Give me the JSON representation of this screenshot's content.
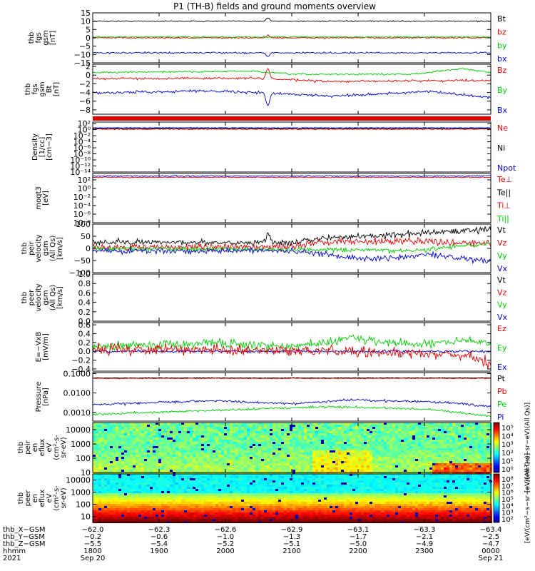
{
  "title": "P1 (TH-B) fields and ground moments overview",
  "colors": {
    "black": "#000000",
    "red": "#e00000",
    "green": "#00cc00",
    "blue": "#0000cc"
  },
  "chart_data": [
    {
      "id": "fgs",
      "type": "line",
      "ylabel": [
        "thb",
        "fgs",
        "gsm",
        "[nT]"
      ],
      "ylim": [
        -15,
        15
      ],
      "ticks": [
        15,
        10,
        5,
        0,
        -5,
        -10,
        -15
      ],
      "tick_labels": [
        "15",
        "10",
        "5",
        "0",
        "−5",
        "−10",
        "−15"
      ],
      "legend": [
        {
          "label": "Bt",
          "color": "black"
        },
        {
          "label": "bz",
          "color": "red"
        },
        {
          "label": "by",
          "color": "green"
        },
        {
          "label": "bx",
          "color": "blue"
        }
      ],
      "series": [
        {
          "name": "Bt",
          "color": "black",
          "base": 10,
          "noise": 0.35,
          "events": [
            [
              0.44,
              2
            ]
          ]
        },
        {
          "name": "bz",
          "color": "red",
          "base": 0,
          "noise": 0.45,
          "events": [
            [
              0.44,
              1.5
            ]
          ]
        },
        {
          "name": "by",
          "color": "green",
          "base": 0.5,
          "noise": 0.35
        },
        {
          "name": "bx",
          "color": "blue",
          "base": -9,
          "noise": 0.5,
          "events": [
            [
              0.44,
              -2
            ]
          ]
        }
      ]
    },
    {
      "id": "fgs_zoom",
      "type": "line",
      "ylabel": [
        "thb",
        "fgs",
        "gsm",
        "Bt",
        "[nT]"
      ],
      "ylim": [
        -9,
        2.5
      ],
      "ticks": [
        2,
        0,
        -2,
        -4,
        -6,
        -8
      ],
      "tick_labels": [
        "2",
        "0",
        "−2",
        "−4",
        "−6",
        "−8"
      ],
      "legend": [
        {
          "label": "Bz",
          "color": "red"
        },
        {
          "label": "By",
          "color": "green"
        },
        {
          "label": "Bx",
          "color": "blue"
        }
      ],
      "series": [
        {
          "name": "Bz",
          "color": "red",
          "trend": [
            [
              0,
              -0.8
            ],
            [
              0.4,
              -0.7
            ],
            [
              0.6,
              -1.5
            ],
            [
              0.8,
              -1.3
            ],
            [
              1,
              -1.2
            ]
          ],
          "noise": 0.25,
          "events": [
            [
              0.44,
              2.5
            ]
          ]
        },
        {
          "name": "By",
          "color": "green",
          "trend": [
            [
              0,
              0.6
            ],
            [
              0.4,
              0.9
            ],
            [
              0.5,
              0.2
            ],
            [
              0.8,
              0.2
            ],
            [
              0.93,
              1.5
            ],
            [
              1,
              0.6
            ]
          ],
          "noise": 0.2
        },
        {
          "name": "Bx",
          "color": "blue",
          "trend": [
            [
              0,
              -4.1
            ],
            [
              0.3,
              -3.6
            ],
            [
              0.6,
              -4.8
            ],
            [
              0.85,
              -3.8
            ],
            [
              1,
              -5.2
            ]
          ],
          "noise": 0.3,
          "events": [
            [
              0.44,
              -3
            ]
          ]
        }
      ]
    },
    {
      "id": "density",
      "type": "line",
      "log": true,
      "ylabel": [
        "Density",
        "[1/cc]",
        "[cm−3]"
      ],
      "ylim": [
        -14,
        2.5
      ],
      "ticks": [
        2,
        0,
        -2,
        -4,
        -6,
        -8,
        -10,
        -12,
        -14
      ],
      "tick_labels": [
        "10²",
        "10⁰",
        "10⁻²",
        "10⁻⁴",
        "10⁻⁶",
        "10⁻⁸",
        "10⁻¹⁰",
        "10⁻¹²",
        "10⁻¹⁴"
      ],
      "legend": [
        {
          "label": "Ne",
          "color": "red"
        },
        {
          "label": "Ni",
          "color": "black"
        },
        {
          "label": "Npot",
          "color": "blue"
        }
      ],
      "series": [
        {
          "name": "Ne",
          "color": "red",
          "base": 0.15,
          "noise": 0.15
        },
        {
          "name": "Ni",
          "color": "black",
          "base": 0.4,
          "noise": 0.12
        },
        {
          "name": "Npot",
          "color": "blue",
          "base": 0.6,
          "noise": 0.1
        }
      ]
    },
    {
      "id": "temperature",
      "type": "line",
      "log": true,
      "ylabel": [
        "moqt3",
        "[eV]"
      ],
      "ylim": [
        -8,
        3.5
      ],
      "ticks": [
        2,
        0,
        -2,
        -4,
        -6,
        -8
      ],
      "tick_labels": [
        "10²",
        "10⁰",
        "10⁻²",
        "10⁻⁴",
        "10⁻⁶",
        "10⁻⁸"
      ],
      "legend": [
        {
          "label": "Te⊥",
          "color": "red"
        },
        {
          "label": "Te||",
          "color": "black"
        },
        {
          "label": "Ti⊥",
          "color": "red"
        },
        {
          "label": "Ti||",
          "color": "green"
        }
      ],
      "series": [
        {
          "name": "Te",
          "color": "red",
          "base": 2.6,
          "noise": 0.12
        },
        {
          "name": "Ti",
          "color": "blue",
          "base": 2.9,
          "noise": 0.15
        }
      ]
    },
    {
      "id": "peir_velocity",
      "type": "line",
      "ylabel": [
        "thb",
        "peir",
        "velocity",
        "gsm",
        "(All Qs)",
        "[km/s]"
      ],
      "ylim": [
        -100,
        100
      ],
      "ticks": [
        100,
        50,
        0,
        -50,
        -100
      ],
      "tick_labels": [
        "100",
        "50",
        "0",
        "−50",
        "−100"
      ],
      "legend": [
        {
          "label": "Vt",
          "color": "black"
        },
        {
          "label": "Vz",
          "color": "red"
        },
        {
          "label": "Vy",
          "color": "green"
        },
        {
          "label": "Vx",
          "color": "blue"
        }
      ],
      "series": [
        {
          "name": "Vt",
          "color": "black",
          "trend": [
            [
              0,
              25
            ],
            [
              0.5,
              25
            ],
            [
              0.6,
              45
            ],
            [
              0.8,
              60
            ],
            [
              1,
              80
            ]
          ],
          "noise": 12,
          "events": [
            [
              0.44,
              40
            ]
          ]
        },
        {
          "name": "Vz",
          "color": "red",
          "trend": [
            [
              0,
              5
            ],
            [
              0.5,
              5
            ],
            [
              0.6,
              30
            ],
            [
              0.8,
              30
            ],
            [
              1,
              20
            ]
          ],
          "noise": 15
        },
        {
          "name": "Vy",
          "color": "green",
          "trend": [
            [
              0,
              0
            ],
            [
              0.5,
              -5
            ],
            [
              0.8,
              -10
            ],
            [
              1,
              20
            ]
          ],
          "noise": 10
        },
        {
          "name": "Vx",
          "color": "blue",
          "trend": [
            [
              0,
              -10
            ],
            [
              0.5,
              -10
            ],
            [
              0.7,
              -45
            ],
            [
              0.85,
              -25
            ],
            [
              1,
              -55
            ]
          ],
          "noise": 12
        }
      ]
    },
    {
      "id": "peer_velocity",
      "type": "line",
      "ylabel": [
        "thb",
        "peer",
        "velocity",
        "gsm",
        "(All Qs)",
        "[km/s]"
      ],
      "ylim": [
        0,
        1
      ],
      "ticks": [
        1.0,
        0.8,
        0.6,
        0.4,
        0.2,
        0.0
      ],
      "tick_labels": [
        "1.0",
        "0.8",
        "0.6",
        "0.4",
        "0.2",
        "0.0"
      ],
      "legend": [
        {
          "label": "Vt",
          "color": "black"
        },
        {
          "label": "Vz",
          "color": "red"
        },
        {
          "label": "Vy",
          "color": "green"
        },
        {
          "label": "Vx",
          "color": "blue"
        }
      ],
      "series": []
    },
    {
      "id": "efield",
      "type": "line",
      "ylabel": [
        "E=−VxB",
        "[mV/m]"
      ],
      "ylim": [
        -0.45,
        0.65
      ],
      "ticks": [
        0.6,
        0.4,
        0.2,
        0.0,
        -0.2,
        -0.4
      ],
      "tick_labels": [
        "0.6",
        "0.4",
        "0.2",
        "0.0",
        "−0.2",
        "−0.4"
      ],
      "legend": [
        {
          "label": "Ez",
          "color": "red"
        },
        {
          "label": "Ey",
          "color": "green"
        },
        {
          "label": "Ex",
          "color": "blue"
        }
      ],
      "series": [
        {
          "name": "Ex",
          "color": "blue",
          "base": 0,
          "noise": 0.03
        },
        {
          "name": "Ey",
          "color": "green",
          "trend": [
            [
              0,
              0.1
            ],
            [
              0.3,
              0.2
            ],
            [
              0.5,
              0.1
            ],
            [
              0.65,
              0.3
            ],
            [
              0.8,
              0.15
            ],
            [
              0.95,
              0.25
            ],
            [
              1,
              0.2
            ]
          ],
          "noise": 0.1
        },
        {
          "name": "Ez",
          "color": "red",
          "trend": [
            [
              0,
              0.05
            ],
            [
              0.5,
              0.02
            ],
            [
              0.8,
              -0.05
            ],
            [
              0.95,
              -0.1
            ],
            [
              1,
              -0.3
            ]
          ],
          "noise": 0.12
        }
      ]
    },
    {
      "id": "pressure",
      "type": "line",
      "log": true,
      "ylabel": [
        "Pressure",
        "[nPa]"
      ],
      "ylim": [
        -3.45,
        -0.95
      ],
      "ticks": [
        -1,
        -2,
        -3
      ],
      "tick_labels": [
        "0.1000",
        "0.0100",
        "0.0010"
      ],
      "legend": [
        {
          "label": "Pt",
          "color": "black"
        },
        {
          "label": "Pb",
          "color": "red"
        },
        {
          "label": "Pe",
          "color": "green"
        },
        {
          "label": "Pi",
          "color": "blue"
        }
      ],
      "series": [
        {
          "name": "Pt",
          "color": "black",
          "base": -1.22,
          "noise": 0.02
        },
        {
          "name": "Pb",
          "color": "red",
          "base": -1.25,
          "noise": 0.02
        },
        {
          "name": "Pi",
          "color": "blue",
          "trend": [
            [
              0,
              -2.6
            ],
            [
              0.3,
              -2.4
            ],
            [
              0.5,
              -2.55
            ],
            [
              0.65,
              -2.35
            ],
            [
              0.9,
              -2.5
            ],
            [
              1,
              -2.7
            ]
          ],
          "noise": 0.06
        },
        {
          "name": "Pe",
          "color": "green",
          "trend": [
            [
              0,
              -3.1
            ],
            [
              0.3,
              -2.9
            ],
            [
              0.6,
              -2.7
            ],
            [
              0.85,
              -2.85
            ],
            [
              1,
              -3.2
            ]
          ],
          "noise": 0.06
        }
      ]
    },
    {
      "id": "peir_spectrogram",
      "type": "heatmap",
      "ylabel": [
        "thb",
        "peir",
        "en",
        "eflux",
        "eV",
        "(cm²-s-",
        "sr-eV)"
      ],
      "ylim": [
        1,
        4.5
      ],
      "ticks": [
        4,
        3,
        2,
        1
      ],
      "tick_labels": [
        "10000",
        "1000",
        "100",
        "10"
      ],
      "colorbar_labels": [
        "10⁵",
        "10⁴",
        "10³",
        "10²",
        "10¹",
        "10⁰"
      ],
      "colorbar_title": "[eV/(cm²−s−sr−eV)(All Qs)]"
    },
    {
      "id": "peer_spectrogram",
      "type": "heatmap",
      "ylabel": [
        "thb",
        "peer",
        "en",
        "eflux",
        "eV",
        "(cm²-s-",
        "sr-eV)"
      ],
      "ylim": [
        0.5,
        4.5
      ],
      "ticks": [
        4,
        3,
        2,
        1
      ],
      "tick_labels": [
        "10000",
        "1000",
        "100",
        "10"
      ],
      "colorbar_labels": [
        "10⁸",
        "10⁷",
        "10⁶",
        "10⁵",
        "10⁴",
        "10³",
        "10²"
      ],
      "colorbar_title": "[eV/(cm²−s−sr−eV)(All Qs)]"
    }
  ],
  "xaxis": {
    "row_labels": [
      "thb_X−GSM",
      "thb_Y−GSM",
      "thb_Z−GSM",
      "hhmm",
      "2021"
    ],
    "columns": [
      {
        "x": "−62.0",
        "y": "−0.2",
        "z": "−5.5",
        "t": "1800",
        "d": "Sep 20"
      },
      {
        "x": "−62.3",
        "y": "−0.6",
        "z": "−5.4",
        "t": "1900",
        "d": ""
      },
      {
        "x": "−62.6",
        "y": "−1.0",
        "z": "−5.2",
        "t": "2000",
        "d": ""
      },
      {
        "x": "−62.9",
        "y": "−1.3",
        "z": "−5.1",
        "t": "2100",
        "d": ""
      },
      {
        "x": "−63.1",
        "y": "−1.7",
        "z": "−5.0",
        "t": "2200",
        "d": ""
      },
      {
        "x": "−63.3",
        "y": "−2.1",
        "z": "−4.9",
        "t": "2300",
        "d": ""
      },
      {
        "x": "−63.4",
        "y": "−2.5",
        "z": "−4.7",
        "t": "0000",
        "d": "Sep 21"
      }
    ]
  }
}
